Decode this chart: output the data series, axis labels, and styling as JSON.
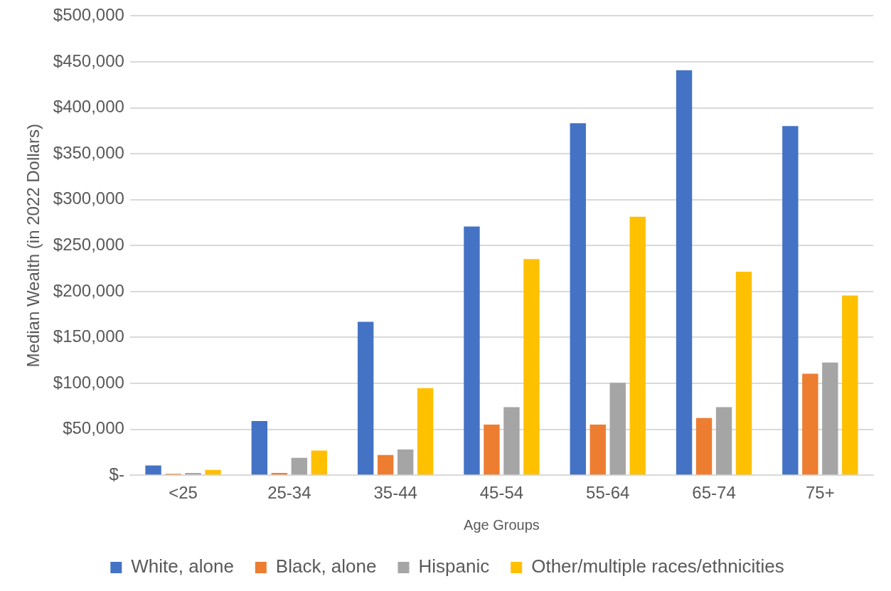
{
  "chart_data": {
    "type": "bar",
    "xlabel": "Age Groups",
    "ylabel": "Median Wealth (in 2022 Dollars)",
    "categories": [
      "<25",
      "25-34",
      "35-44",
      "45-54",
      "55-64",
      "65-74",
      "75+"
    ],
    "series": [
      {
        "name": "White, alone",
        "color": "#4472c4",
        "values": [
          10700,
          59000,
          167000,
          270700,
          383200,
          440900,
          380200
        ]
      },
      {
        "name": "Black, alone",
        "color": "#ed7d31",
        "values": [
          500,
          2500,
          22000,
          55200,
          55200,
          62200,
          110400
        ]
      },
      {
        "name": "Hispanic",
        "color": "#a5a5a5",
        "values": [
          2500,
          19000,
          28000,
          74100,
          100600,
          74100,
          122600
        ]
      },
      {
        "name": "Other/multiple races/ethnicities",
        "color": "#ffc000",
        "values": [
          5800,
          26900,
          94800,
          235400,
          281400,
          221600,
          195700
        ]
      }
    ],
    "ylim": [
      0,
      500000
    ],
    "yticks": [
      {
        "value": 0,
        "label": "$-"
      },
      {
        "value": 50000,
        "label": "$50,000"
      },
      {
        "value": 100000,
        "label": "$100,000"
      },
      {
        "value": 150000,
        "label": "$150,000"
      },
      {
        "value": 200000,
        "label": "$200,000"
      },
      {
        "value": 250000,
        "label": "$250,000"
      },
      {
        "value": 300000,
        "label": "$300,000"
      },
      {
        "value": 350000,
        "label": "$350,000"
      },
      {
        "value": 400000,
        "label": "$400,000"
      },
      {
        "value": 450000,
        "label": "$450,000"
      },
      {
        "value": 500000,
        "label": "$500,000"
      }
    ],
    "grid": "y",
    "legend": "bottom"
  }
}
